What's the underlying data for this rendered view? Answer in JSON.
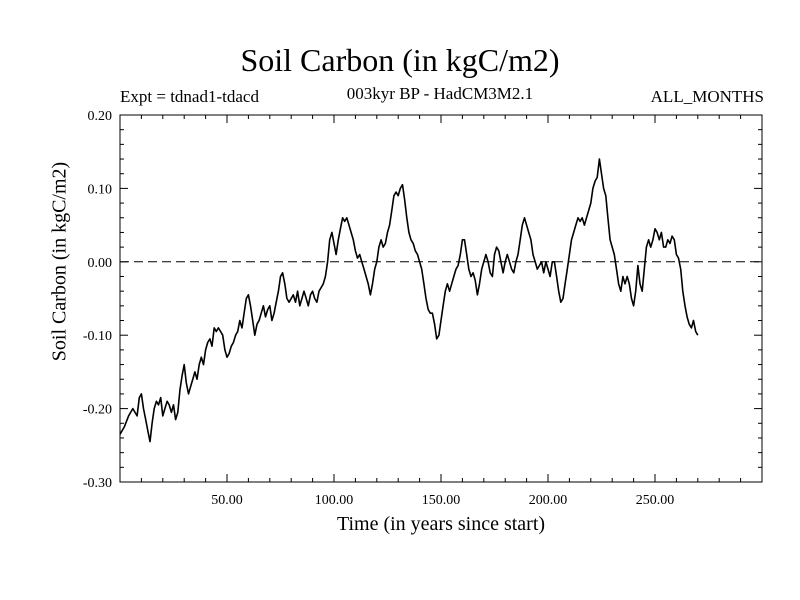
{
  "chart_data": {
    "type": "line",
    "title": "Soil Carbon (in kgC/m2)",
    "subtitle_left": "Expt = tdnad1-tdacd",
    "subtitle_center": "003kyr BP - HadCM3M2.1",
    "subtitle_right": "ALL_MONTHS",
    "xlabel": "Time (in years since start)",
    "ylabel": "Soil Carbon (in kgC/m2)",
    "xlim": [
      0,
      300
    ],
    "ylim": [
      -0.3,
      0.2
    ],
    "xticks": [
      50,
      100,
      150,
      200,
      250
    ],
    "xtick_labels": [
      "50.00",
      "100.00",
      "150.00",
      "200.00",
      "250.00"
    ],
    "yticks": [
      0.2,
      0.1,
      0.0,
      -0.1,
      -0.2,
      -0.3
    ],
    "ytick_labels": [
      "0.20",
      "0.10",
      "0.00",
      "-0.10",
      "-0.20",
      "-0.30"
    ],
    "reference_line": {
      "y": 0.0,
      "style": "dashed"
    },
    "series": [
      {
        "name": "Soil Carbon",
        "color": "#000000",
        "points": [
          [
            0,
            -0.235
          ],
          [
            2,
            -0.225
          ],
          [
            4,
            -0.21
          ],
          [
            6,
            -0.2
          ],
          [
            8,
            -0.21
          ],
          [
            9,
            -0.185
          ],
          [
            10,
            -0.18
          ],
          [
            11,
            -0.2
          ],
          [
            12,
            -0.215
          ],
          [
            13,
            -0.23
          ],
          [
            14,
            -0.245
          ],
          [
            15,
            -0.22
          ],
          [
            16,
            -0.2
          ],
          [
            17,
            -0.19
          ],
          [
            18,
            -0.195
          ],
          [
            19,
            -0.185
          ],
          [
            20,
            -0.21
          ],
          [
            21,
            -0.2
          ],
          [
            22,
            -0.19
          ],
          [
            23,
            -0.195
          ],
          [
            24,
            -0.205
          ],
          [
            25,
            -0.195
          ],
          [
            26,
            -0.215
          ],
          [
            27,
            -0.205
          ],
          [
            28,
            -0.175
          ],
          [
            29,
            -0.155
          ],
          [
            30,
            -0.14
          ],
          [
            31,
            -0.165
          ],
          [
            32,
            -0.18
          ],
          [
            33,
            -0.17
          ],
          [
            34,
            -0.16
          ],
          [
            35,
            -0.15
          ],
          [
            36,
            -0.16
          ],
          [
            37,
            -0.14
          ],
          [
            38,
            -0.13
          ],
          [
            39,
            -0.14
          ],
          [
            40,
            -0.12
          ],
          [
            41,
            -0.11
          ],
          [
            42,
            -0.105
          ],
          [
            43,
            -0.115
          ],
          [
            44,
            -0.09
          ],
          [
            45,
            -0.095
          ],
          [
            46,
            -0.09
          ],
          [
            47,
            -0.095
          ],
          [
            48,
            -0.1
          ],
          [
            49,
            -0.12
          ],
          [
            50,
            -0.13
          ],
          [
            51,
            -0.125
          ],
          [
            52,
            -0.115
          ],
          [
            53,
            -0.11
          ],
          [
            54,
            -0.1
          ],
          [
            55,
            -0.095
          ],
          [
            56,
            -0.08
          ],
          [
            57,
            -0.09
          ],
          [
            58,
            -0.07
          ],
          [
            59,
            -0.05
          ],
          [
            60,
            -0.045
          ],
          [
            61,
            -0.06
          ],
          [
            62,
            -0.08
          ],
          [
            63,
            -0.1
          ],
          [
            64,
            -0.085
          ],
          [
            65,
            -0.08
          ],
          [
            66,
            -0.07
          ],
          [
            67,
            -0.06
          ],
          [
            68,
            -0.075
          ],
          [
            69,
            -0.065
          ],
          [
            70,
            -0.06
          ],
          [
            71,
            -0.08
          ],
          [
            72,
            -0.07
          ],
          [
            73,
            -0.055
          ],
          [
            74,
            -0.04
          ],
          [
            75,
            -0.02
          ],
          [
            76,
            -0.015
          ],
          [
            77,
            -0.03
          ],
          [
            78,
            -0.05
          ],
          [
            79,
            -0.055
          ],
          [
            80,
            -0.05
          ],
          [
            81,
            -0.045
          ],
          [
            82,
            -0.055
          ],
          [
            83,
            -0.04
          ],
          [
            84,
            -0.06
          ],
          [
            85,
            -0.05
          ],
          [
            86,
            -0.04
          ],
          [
            87,
            -0.05
          ],
          [
            88,
            -0.06
          ],
          [
            89,
            -0.045
          ],
          [
            90,
            -0.04
          ],
          [
            91,
            -0.05
          ],
          [
            92,
            -0.055
          ],
          [
            93,
            -0.04
          ],
          [
            94,
            -0.035
          ],
          [
            95,
            -0.03
          ],
          [
            96,
            -0.02
          ],
          [
            97,
            0.0
          ],
          [
            98,
            0.03
          ],
          [
            99,
            0.04
          ],
          [
            100,
            0.025
          ],
          [
            101,
            0.01
          ],
          [
            102,
            0.03
          ],
          [
            103,
            0.045
          ],
          [
            104,
            0.06
          ],
          [
            105,
            0.055
          ],
          [
            106,
            0.06
          ],
          [
            107,
            0.05
          ],
          [
            108,
            0.04
          ],
          [
            109,
            0.03
          ],
          [
            110,
            0.015
          ],
          [
            111,
            0.005
          ],
          [
            112,
            0.01
          ],
          [
            113,
            0.0
          ],
          [
            114,
            -0.01
          ],
          [
            115,
            -0.02
          ],
          [
            116,
            -0.03
          ],
          [
            117,
            -0.045
          ],
          [
            118,
            -0.03
          ],
          [
            119,
            -0.01
          ],
          [
            120,
            0.0
          ],
          [
            121,
            0.02
          ],
          [
            122,
            0.03
          ],
          [
            123,
            0.02
          ],
          [
            124,
            0.025
          ],
          [
            125,
            0.04
          ],
          [
            126,
            0.05
          ],
          [
            127,
            0.07
          ],
          [
            128,
            0.09
          ],
          [
            129,
            0.095
          ],
          [
            130,
            0.09
          ],
          [
            131,
            0.1
          ],
          [
            132,
            0.105
          ],
          [
            133,
            0.085
          ],
          [
            134,
            0.06
          ],
          [
            135,
            0.04
          ],
          [
            136,
            0.03
          ],
          [
            137,
            0.025
          ],
          [
            138,
            0.015
          ],
          [
            139,
            0.01
          ],
          [
            140,
            0.0
          ],
          [
            141,
            -0.01
          ],
          [
            142,
            -0.03
          ],
          [
            143,
            -0.05
          ],
          [
            144,
            -0.065
          ],
          [
            145,
            -0.07
          ],
          [
            146,
            -0.07
          ],
          [
            147,
            -0.085
          ],
          [
            148,
            -0.105
          ],
          [
            149,
            -0.1
          ],
          [
            150,
            -0.08
          ],
          [
            151,
            -0.06
          ],
          [
            152,
            -0.04
          ],
          [
            153,
            -0.03
          ],
          [
            154,
            -0.04
          ],
          [
            155,
            -0.03
          ],
          [
            156,
            -0.02
          ],
          [
            157,
            -0.01
          ],
          [
            158,
            -0.005
          ],
          [
            159,
            0.01
          ],
          [
            160,
            0.03
          ],
          [
            161,
            0.03
          ],
          [
            162,
            0.01
          ],
          [
            163,
            -0.01
          ],
          [
            164,
            -0.02
          ],
          [
            165,
            -0.015
          ],
          [
            166,
            -0.025
          ],
          [
            167,
            -0.045
          ],
          [
            168,
            -0.03
          ],
          [
            169,
            -0.01
          ],
          [
            170,
            0.0
          ],
          [
            171,
            0.01
          ],
          [
            172,
            0.0
          ],
          [
            173,
            -0.015
          ],
          [
            174,
            -0.02
          ],
          [
            175,
            0.01
          ],
          [
            176,
            0.02
          ],
          [
            177,
            0.015
          ],
          [
            178,
            0.0
          ],
          [
            179,
            -0.015
          ],
          [
            180,
            0.0
          ],
          [
            181,
            0.01
          ],
          [
            182,
            0.0
          ],
          [
            183,
            -0.01
          ],
          [
            184,
            -0.015
          ],
          [
            185,
            0.0
          ],
          [
            186,
            0.01
          ],
          [
            187,
            0.03
          ],
          [
            188,
            0.05
          ],
          [
            189,
            0.06
          ],
          [
            190,
            0.05
          ],
          [
            191,
            0.04
          ],
          [
            192,
            0.03
          ],
          [
            193,
            0.01
          ],
          [
            194,
            0.0
          ],
          [
            195,
            -0.01
          ],
          [
            196,
            -0.005
          ],
          [
            197,
            0.0
          ],
          [
            198,
            -0.015
          ],
          [
            199,
            0.0
          ],
          [
            200,
            -0.01
          ],
          [
            201,
            -0.02
          ],
          [
            202,
            0.0
          ],
          [
            203,
            0.0
          ],
          [
            204,
            -0.02
          ],
          [
            205,
            -0.04
          ],
          [
            206,
            -0.055
          ],
          [
            207,
            -0.05
          ],
          [
            208,
            -0.03
          ],
          [
            209,
            -0.01
          ],
          [
            210,
            0.01
          ],
          [
            211,
            0.03
          ],
          [
            212,
            0.04
          ],
          [
            213,
            0.05
          ],
          [
            214,
            0.06
          ],
          [
            215,
            0.055
          ],
          [
            216,
            0.06
          ],
          [
            217,
            0.05
          ],
          [
            218,
            0.06
          ],
          [
            219,
            0.07
          ],
          [
            220,
            0.08
          ],
          [
            221,
            0.1
          ],
          [
            222,
            0.11
          ],
          [
            223,
            0.115
          ],
          [
            224,
            0.14
          ],
          [
            225,
            0.12
          ],
          [
            226,
            0.1
          ],
          [
            227,
            0.09
          ],
          [
            228,
            0.06
          ],
          [
            229,
            0.03
          ],
          [
            230,
            0.02
          ],
          [
            231,
            0.01
          ],
          [
            232,
            -0.01
          ],
          [
            233,
            -0.03
          ],
          [
            234,
            -0.04
          ],
          [
            235,
            -0.02
          ],
          [
            236,
            -0.03
          ],
          [
            237,
            -0.02
          ],
          [
            238,
            -0.03
          ],
          [
            239,
            -0.05
          ],
          [
            240,
            -0.06
          ],
          [
            241,
            -0.04
          ],
          [
            242,
            -0.005
          ],
          [
            243,
            -0.03
          ],
          [
            244,
            -0.04
          ],
          [
            245,
            -0.01
          ],
          [
            246,
            0.02
          ],
          [
            247,
            0.03
          ],
          [
            248,
            0.02
          ],
          [
            249,
            0.03
          ],
          [
            250,
            0.045
          ],
          [
            251,
            0.04
          ],
          [
            252,
            0.03
          ],
          [
            253,
            0.04
          ],
          [
            254,
            0.02
          ],
          [
            255,
            0.02
          ],
          [
            256,
            0.03
          ],
          [
            257,
            0.025
          ],
          [
            258,
            0.035
          ],
          [
            259,
            0.03
          ],
          [
            260,
            0.01
          ],
          [
            261,
            0.005
          ],
          [
            262,
            -0.01
          ],
          [
            263,
            -0.04
          ],
          [
            264,
            -0.06
          ],
          [
            265,
            -0.075
          ],
          [
            266,
            -0.085
          ],
          [
            267,
            -0.09
          ],
          [
            268,
            -0.08
          ],
          [
            269,
            -0.095
          ],
          [
            270,
            -0.1
          ]
        ]
      }
    ]
  }
}
